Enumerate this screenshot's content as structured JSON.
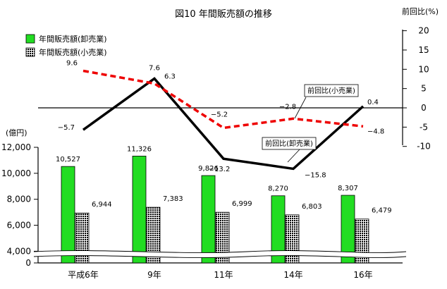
{
  "chart_data": {
    "type": "bar+line",
    "title": "図10  年間販売額の推移",
    "categories": [
      "平成6年",
      "9年",
      "11年",
      "14年",
      "16年"
    ],
    "left_axis": {
      "unit": "(億円)",
      "ticks": [
        "12,000",
        "10,000",
        "8,000",
        "6,000",
        "4,000",
        "0"
      ],
      "range": [
        0,
        12000
      ],
      "broken_below": 4000
    },
    "right_axis": {
      "unit": "前回比(%)",
      "ticks": [
        "20",
        "15",
        "10",
        "5",
        "0",
        "-5",
        "-10"
      ],
      "range": [
        -10,
        20
      ]
    },
    "series": [
      {
        "name": "年間販売額(卸売業)",
        "kind": "bar",
        "axis": "left",
        "color": "#22dd22",
        "values": [
          10527,
          11326,
          9826,
          8270,
          8307
        ],
        "labels": [
          "10,527",
          "11,326",
          "9,826",
          "8,270",
          "8,307"
        ]
      },
      {
        "name": "年間販売額(小売業)",
        "kind": "bar",
        "axis": "left",
        "pattern": "dotted-black",
        "values": [
          6944,
          7383,
          6999,
          6803,
          6479
        ],
        "labels": [
          "6,944",
          "7,383",
          "6,999",
          "6,803",
          "6,479"
        ]
      },
      {
        "name": "前回比(卸売業)",
        "kind": "line",
        "axis": "right",
        "color": "#000000",
        "values": [
          -5.7,
          7.6,
          -13.2,
          -15.8,
          0.4
        ],
        "labels": [
          "−5.7",
          "7.6",
          "−13.2",
          "−15.8",
          "0.4"
        ]
      },
      {
        "name": "前回比(小売業)",
        "kind": "line",
        "axis": "right",
        "color": "#ee0000",
        "dash": true,
        "values": [
          9.6,
          6.3,
          -5.2,
          -2.8,
          -4.8
        ],
        "labels": [
          "9.6",
          "6.3",
          "−5.2",
          "−2.8",
          "−4.8"
        ]
      }
    ],
    "legend": [
      "年間販売額(卸売業)",
      "年間販売額(小売業)"
    ],
    "callouts": [
      "前回比(小売業)",
      "前回比(卸売業)"
    ],
    "legend_position": "top-left"
  }
}
